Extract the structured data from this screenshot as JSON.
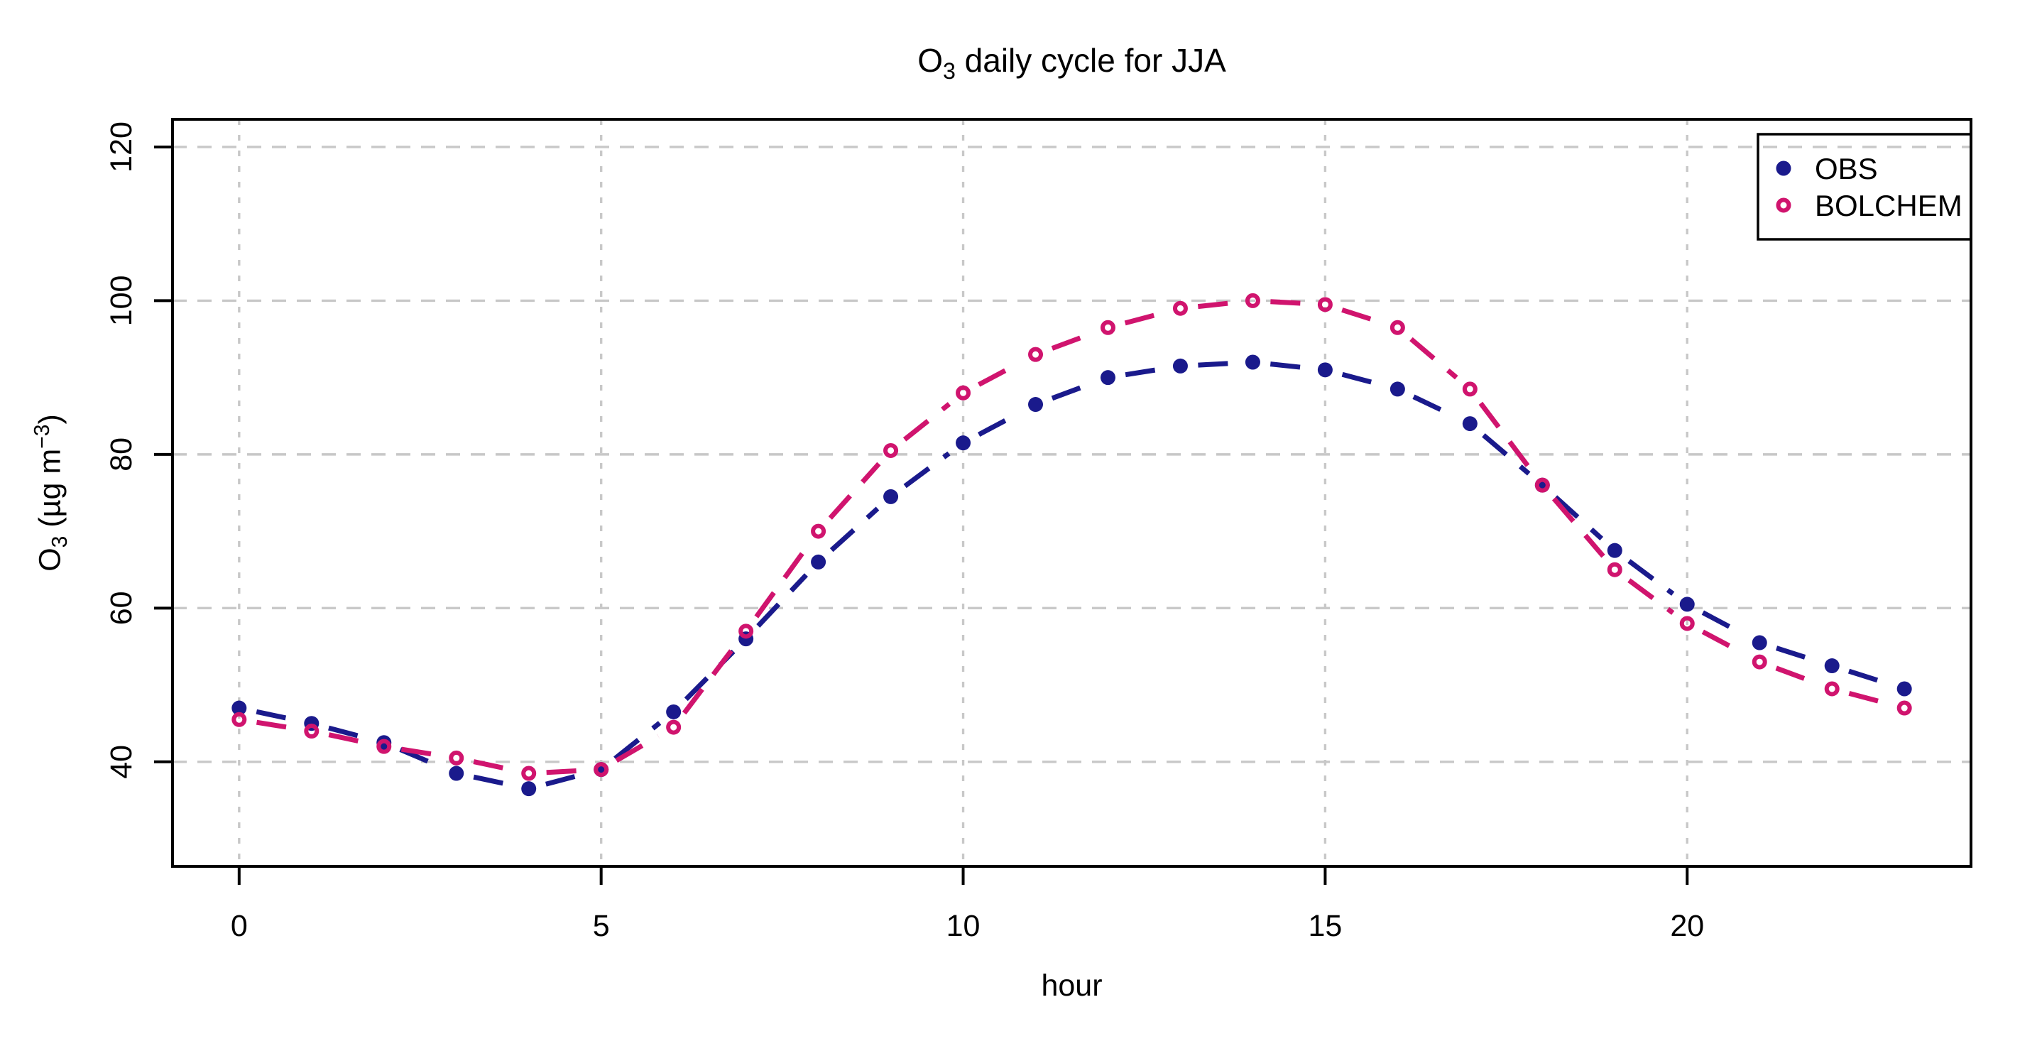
{
  "figure": {
    "title_prefix": "O",
    "title_sub": "3",
    "title_rest": " daily cycle for JJA",
    "y_label_prefix": "O",
    "y_label_sub": "3",
    "y_label_mid": " (µg m",
    "y_label_sup": "−3",
    "y_label_suffix": ")",
    "x_label": "hour"
  },
  "chart_data": {
    "type": "line",
    "title": "O3 daily cycle for JJA",
    "xlabel": "hour",
    "ylabel": "O3 (µg m−3)",
    "x": [
      0,
      1,
      2,
      3,
      4,
      5,
      6,
      7,
      8,
      9,
      10,
      11,
      12,
      13,
      14,
      15,
      16,
      17,
      18,
      19,
      20,
      21,
      22,
      23
    ],
    "series": [
      {
        "name": "OBS",
        "marker": "filled-circle",
        "color": "#1a1a8c",
        "values": [
          47,
          45,
          42.5,
          38.5,
          36.5,
          39,
          46.5,
          56,
          66,
          74.5,
          81.5,
          86.5,
          90,
          91.5,
          92,
          91,
          88.5,
          84,
          76,
          67.5,
          60.5,
          55.5,
          52.5,
          49.5
        ]
      },
      {
        "name": "BOLCHEM",
        "marker": "open-circle",
        "color": "#d0146e",
        "values": [
          45.5,
          44,
          42,
          40.5,
          38.5,
          39,
          44.5,
          57,
          70,
          80.5,
          88,
          93,
          96.5,
          99,
          100,
          99.5,
          96.5,
          88.5,
          76,
          65,
          58,
          53,
          49.5,
          47
        ]
      }
    ],
    "x_ticks": [
      0,
      5,
      10,
      15,
      20
    ],
    "y_ticks": [
      40,
      60,
      80,
      100,
      120
    ],
    "xlim": [
      -0.92,
      23.92
    ],
    "ylim": [
      26.4,
      123.6
    ],
    "grid": true,
    "legend_position": "top-right",
    "line_style": "dashed",
    "colors": {
      "grid": "#c8c8c8",
      "axis": "#000000",
      "background": "#ffffff"
    }
  }
}
